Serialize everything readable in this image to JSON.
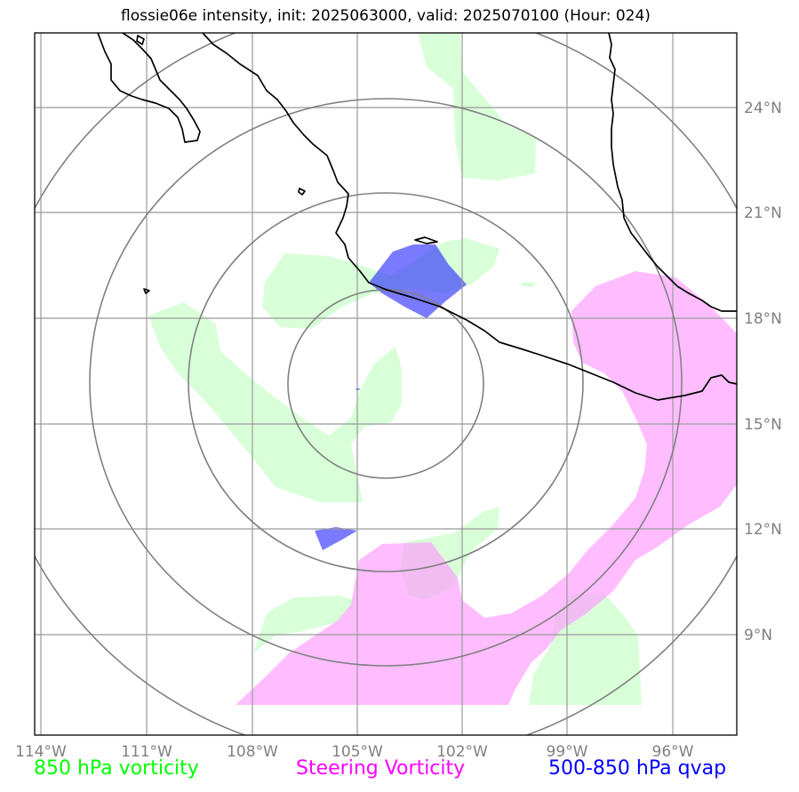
{
  "title": "flossie06e intensity, init: 2025063000, valid: 2025070100 (Hour: 024)",
  "map": {
    "lon_labels": [
      "114°W",
      "111°W",
      "108°W",
      "105°W",
      "102°W",
      "99°W",
      "96°W"
    ],
    "lat_labels": [
      "24°N",
      "21°N",
      "18°N",
      "15°N",
      "12°N",
      "9°N"
    ],
    "gridline_color": "#999999",
    "range_ring_color": "#808080",
    "coastline_color": "#000000"
  },
  "legend": {
    "vort850": {
      "label": "850 hPa vorticity",
      "color": "#00ff00"
    },
    "steering": {
      "label": "Steering Vorticity",
      "color": "#ff00ff"
    },
    "qvap": {
      "label": "500-850 hPa qvap",
      "color": "#0000ff"
    }
  },
  "fields": {
    "vort850_fill": "#ccffcc",
    "steering_fill": "#ff99ff",
    "qvap_fill": "#3333ff"
  }
}
